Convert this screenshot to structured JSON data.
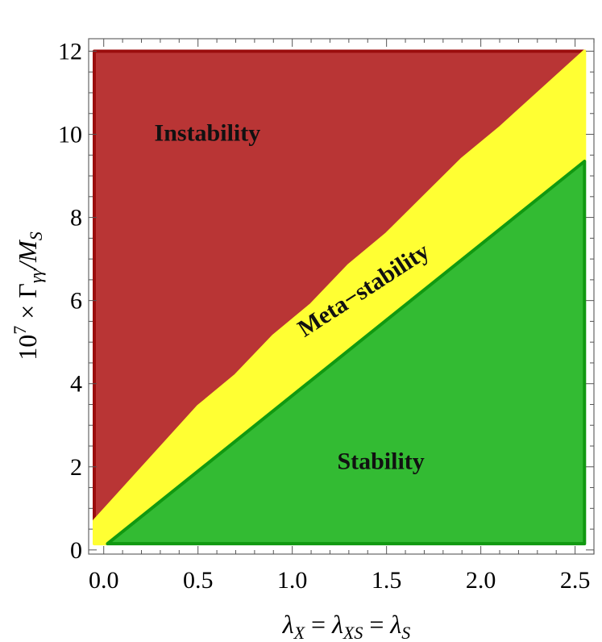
{
  "chart_data": {
    "type": "area",
    "title": "",
    "xlabel": "λ_X = λ_XS = λ_S",
    "ylabel": "10^7 × Γ_γγ/M_S",
    "xlim": [
      -0.08,
      2.6
    ],
    "ylim": [
      -0.1,
      12.3
    ],
    "x_ticks": [
      "0.0",
      "0.5",
      "1.0",
      "1.5",
      "2.0",
      "2.5"
    ],
    "y_ticks": [
      "0",
      "2",
      "4",
      "6",
      "8",
      "10",
      "12"
    ],
    "grid": false,
    "series": [
      {
        "name": "Instability",
        "color": "#b93535",
        "stroke": "#9b0d0d",
        "polygon": [
          [
            -0.05,
            0.7
          ],
          [
            0.5,
            3.45
          ],
          [
            0.7,
            4.2
          ],
          [
            0.9,
            5.15
          ],
          [
            1.1,
            5.9
          ],
          [
            1.3,
            6.85
          ],
          [
            1.5,
            7.6
          ],
          [
            1.9,
            9.4
          ],
          [
            2.1,
            10.15
          ],
          [
            2.55,
            12.0
          ],
          [
            -0.05,
            12.0
          ]
        ]
      },
      {
        "name": "Meta-stability",
        "color": "#ffff33",
        "stroke": "#ffff33",
        "polygon": [
          [
            -0.05,
            0.15
          ],
          [
            0.02,
            0.15
          ],
          [
            2.55,
            9.35
          ],
          [
            2.55,
            12.0
          ],
          [
            2.1,
            10.15
          ],
          [
            1.9,
            9.4
          ],
          [
            1.5,
            7.6
          ],
          [
            1.3,
            6.85
          ],
          [
            1.1,
            5.9
          ],
          [
            0.9,
            5.15
          ],
          [
            0.7,
            4.2
          ],
          [
            0.5,
            3.45
          ],
          [
            -0.05,
            0.7
          ]
        ]
      },
      {
        "name": "Stability",
        "color": "#33bb33",
        "stroke": "#119911",
        "polygon": [
          [
            0.02,
            0.15
          ],
          [
            2.55,
            9.35
          ],
          [
            2.55,
            0.15
          ]
        ]
      }
    ],
    "annotations": [
      {
        "text": "Instability",
        "x": 0.55,
        "y": 9.85,
        "rotate": 0
      },
      {
        "text": "Meta−stability",
        "x": 1.4,
        "y": 6.1,
        "rotate": -33
      },
      {
        "text": "Stability",
        "x": 1.47,
        "y": 1.95,
        "rotate": 0
      }
    ]
  }
}
